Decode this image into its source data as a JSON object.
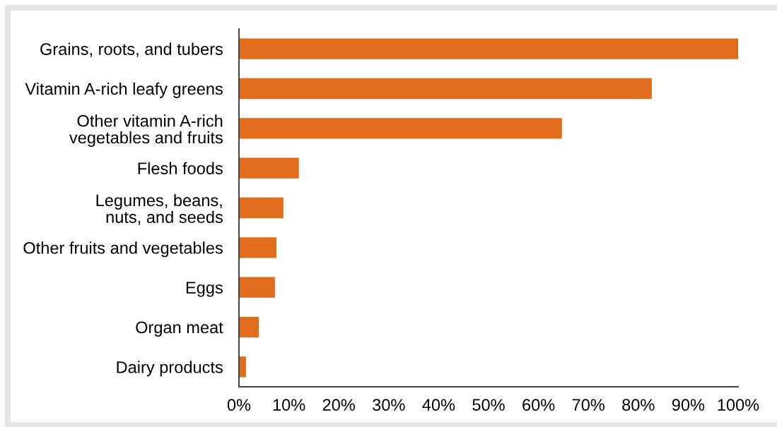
{
  "chart_data": {
    "type": "bar",
    "orientation": "horizontal",
    "categories": [
      "Grains, roots, and tubers",
      "Vitamin A-rich leafy greens",
      "Other vitamin A-rich\nvegetables and fruits",
      "Flesh foods",
      "Legumes, beans,\nnuts, and seeds",
      "Other fruits and vegetables",
      "Eggs",
      "Organ meat",
      "Dairy products"
    ],
    "values": [
      100,
      82.7,
      64.7,
      12.0,
      8.9,
      7.5,
      7.2,
      4.0,
      1.4
    ],
    "color": "#e06c1e",
    "xlim": [
      0,
      100
    ],
    "xticks": [
      {
        "value": 0,
        "label": "0%"
      },
      {
        "value": 10,
        "label": "10%"
      },
      {
        "value": 20,
        "label": "20%"
      },
      {
        "value": 30,
        "label": "30%"
      },
      {
        "value": 40,
        "label": "40%"
      },
      {
        "value": 50,
        "label": "50%"
      },
      {
        "value": 60,
        "label": "60%"
      },
      {
        "value": 70,
        "label": "70%"
      },
      {
        "value": 80,
        "label": "80%"
      },
      {
        "value": 90,
        "label": "90%"
      },
      {
        "value": 100,
        "label": "100%"
      }
    ]
  }
}
